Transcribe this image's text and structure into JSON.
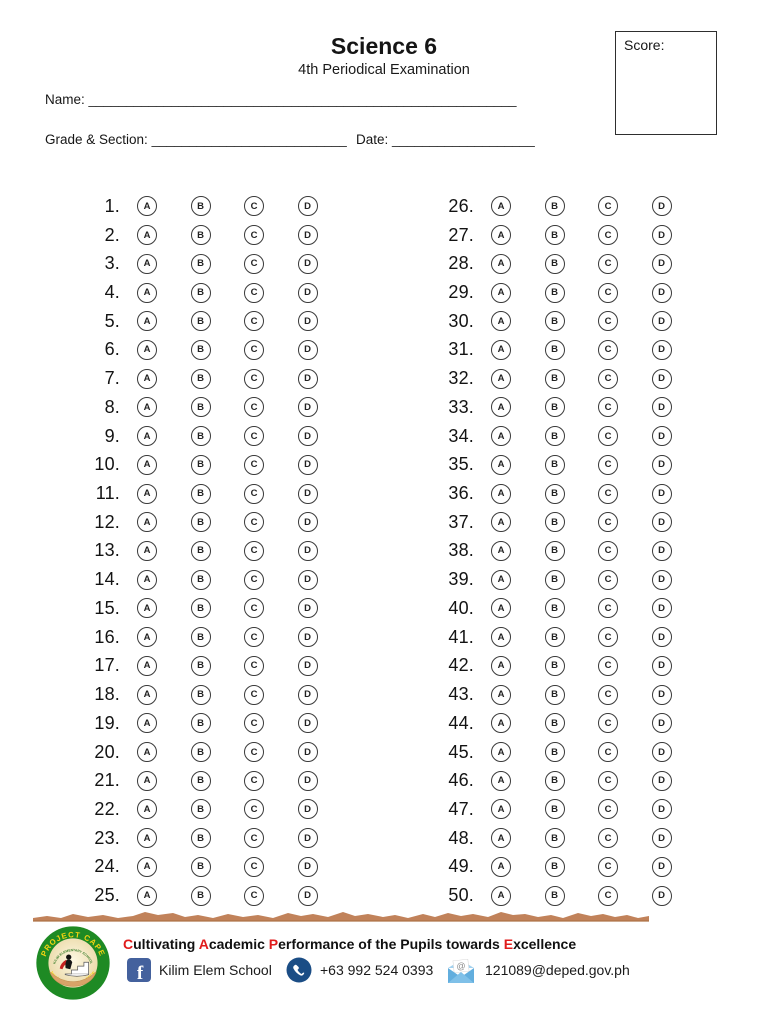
{
  "header": {
    "title": "Science 6",
    "subtitle": "4th Periodical Examination",
    "score_label": "Score:",
    "name_label": "Name:",
    "name_line": "_________________________________________________________",
    "grade_section_label": "Grade & Section:",
    "grade_section_line": "__________________________",
    "date_label": "Date:",
    "date_line": "___________________"
  },
  "answer_sheet": {
    "choices": [
      "A",
      "B",
      "C",
      "D"
    ],
    "left_numbers": [
      "1.",
      "2.",
      "3.",
      "4.",
      "5.",
      "6.",
      "7.",
      "8.",
      "9.",
      "10.",
      "11.",
      "12.",
      "13.",
      "14.",
      "15.",
      "16.",
      "17.",
      "18.",
      "19.",
      "20.",
      "21.",
      "22.",
      "23.",
      "24.",
      "25."
    ],
    "right_numbers": [
      "26.",
      "27.",
      "28.",
      "29.",
      "30.",
      "31.",
      "32.",
      "33.",
      "34.",
      "35.",
      "36.",
      "37.",
      "38.",
      "39.",
      "40.",
      "41.",
      "42.",
      "43.",
      "44.",
      "45.",
      "46.",
      "47.",
      "48.",
      "49.",
      "50."
    ]
  },
  "footer": {
    "logo": {
      "top_text": "PROJECT CAPE",
      "bottom_text": "Inspired by Project GECE",
      "inner_text": "KILIM ELEMENTARY SCHOOL"
    },
    "tagline_segments": [
      {
        "text": "C",
        "highlight": true
      },
      {
        "text": "ultivating ",
        "highlight": false
      },
      {
        "text": "A",
        "highlight": true
      },
      {
        "text": "cademic ",
        "highlight": false
      },
      {
        "text": "P",
        "highlight": true
      },
      {
        "text": "erformance of the Pupils towards ",
        "highlight": false
      },
      {
        "text": "E",
        "highlight": true
      },
      {
        "text": "xcellence",
        "highlight": false
      }
    ],
    "facebook_label": "Kilim Elem School",
    "phone_label": "+63 992 524 0393",
    "email_label": "121089@deped.gov.ph"
  },
  "colors": {
    "highlight_red": "#e01b1b",
    "divider_brown": "#c1825a",
    "divider_brown_dark": "#ab6f42",
    "facebook_blue": "#44619D",
    "phone_blue": "#1b4d85",
    "envelope_blue": "#62aede",
    "logo_green": "#1e8a24",
    "logo_yellow": "#f7d411"
  }
}
